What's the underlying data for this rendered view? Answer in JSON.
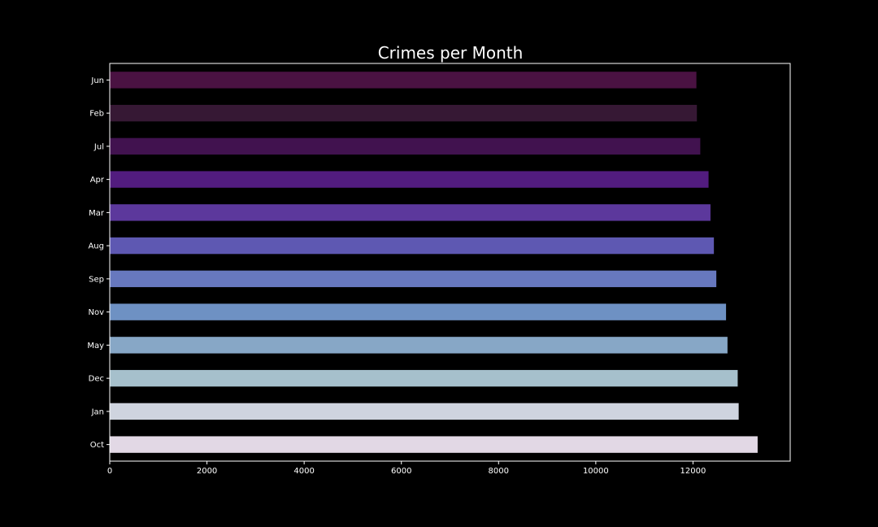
{
  "chart_data": {
    "type": "bar",
    "orientation": "horizontal",
    "title": "Crimes per Month",
    "xlabel": "",
    "ylabel": "",
    "categories": [
      "Oct",
      "Jan",
      "Dec",
      "May",
      "Nov",
      "Sep",
      "Aug",
      "Mar",
      "Apr",
      "Jul",
      "Feb",
      "Jun"
    ],
    "values": [
      13330,
      12940,
      12920,
      12710,
      12680,
      12480,
      12430,
      12360,
      12320,
      12150,
      12080,
      12070
    ],
    "colors": [
      "#e2d8e5",
      "#cfd4df",
      "#a6c0cc",
      "#87a7c6",
      "#6e91c3",
      "#6778be",
      "#5e58b2",
      "#5c389c",
      "#521c7f",
      "#41124f",
      "#361834",
      "#4a1242"
    ],
    "xlim": [
      0,
      14000
    ],
    "xticks": [
      0,
      2000,
      4000,
      6000,
      8000,
      10000,
      12000
    ],
    "grid": false,
    "legend": "none",
    "background": "#000000",
    "axis_color": "#ffffff",
    "text_color": "#ffffff"
  }
}
